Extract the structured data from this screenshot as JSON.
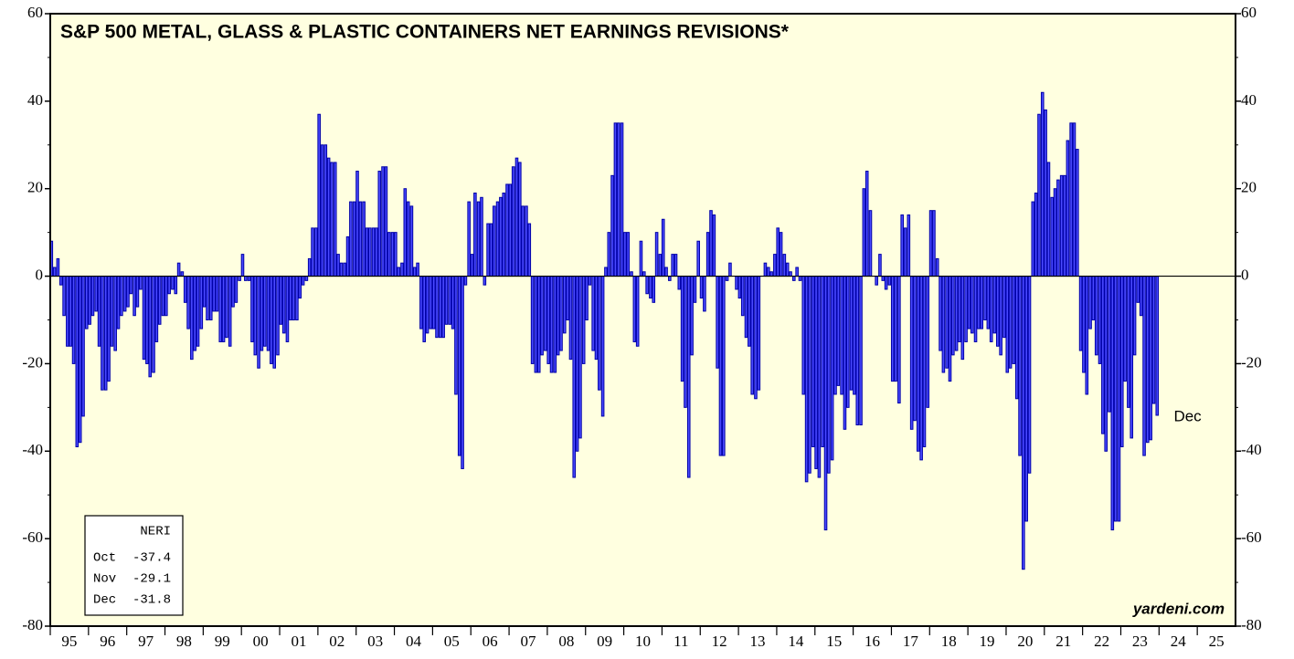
{
  "chart_data": {
    "type": "bar",
    "title": "S&P 500 METAL, GLASS & PLASTIC CONTAINERS NET EARNINGS REVISIONS*",
    "credit": "yardeni.com",
    "end_label": "Dec",
    "legend_box": {
      "title": "NERI",
      "months": [
        "Oct",
        "Nov",
        "Dec"
      ]
    },
    "xlim": [
      1995,
      2026
    ],
    "xticks": [
      {
        "value": 1995.5,
        "label": "95"
      },
      {
        "value": 1996.5,
        "label": "96"
      },
      {
        "value": 1997.5,
        "label": "97"
      },
      {
        "value": 1998.5,
        "label": "98"
      },
      {
        "value": 1999.5,
        "label": "99"
      },
      {
        "value": 2000.5,
        "label": "00"
      },
      {
        "value": 2001.5,
        "label": "01"
      },
      {
        "value": 2002.5,
        "label": "02"
      },
      {
        "value": 2003.5,
        "label": "03"
      },
      {
        "value": 2004.5,
        "label": "04"
      },
      {
        "value": 2005.5,
        "label": "05"
      },
      {
        "value": 2006.5,
        "label": "06"
      },
      {
        "value": 2007.5,
        "label": "07"
      },
      {
        "value": 2008.5,
        "label": "08"
      },
      {
        "value": 2009.5,
        "label": "09"
      },
      {
        "value": 2010.5,
        "label": "10"
      },
      {
        "value": 2011.5,
        "label": "11"
      },
      {
        "value": 2012.5,
        "label": "12"
      },
      {
        "value": 2013.5,
        "label": "13"
      },
      {
        "value": 2014.5,
        "label": "14"
      },
      {
        "value": 2015.5,
        "label": "15"
      },
      {
        "value": 2016.5,
        "label": "16"
      },
      {
        "value": 2017.5,
        "label": "17"
      },
      {
        "value": 2018.5,
        "label": "18"
      },
      {
        "value": 2019.5,
        "label": "19"
      },
      {
        "value": 2020.5,
        "label": "20"
      },
      {
        "value": 2021.5,
        "label": "21"
      },
      {
        "value": 2022.5,
        "label": "22"
      },
      {
        "value": 2023.5,
        "label": "23"
      },
      {
        "value": 2024.5,
        "label": "24"
      },
      {
        "value": 2025.5,
        "label": "25"
      }
    ],
    "ylim": [
      -80,
      60
    ],
    "yticks": [
      -80,
      -60,
      -40,
      -20,
      0,
      20,
      40,
      60
    ],
    "series": [
      {
        "name": "NERI",
        "color": "#4a4aff",
        "edge": "#0000a8",
        "x": [
          1995,
          1995.08,
          1995.17,
          1995.25,
          1995.33,
          1995.42,
          1995.5,
          1995.58,
          1995.67,
          1995.75,
          1995.83,
          1995.92,
          1996,
          1996.08,
          1996.17,
          1996.25,
          1996.33,
          1996.42,
          1996.5,
          1996.58,
          1996.67,
          1996.75,
          1996.83,
          1996.92,
          1997,
          1997.08,
          1997.17,
          1997.25,
          1997.33,
          1997.42,
          1997.5,
          1997.58,
          1997.67,
          1997.75,
          1997.83,
          1997.92,
          1998,
          1998.08,
          1998.17,
          1998.25,
          1998.33,
          1998.42,
          1998.5,
          1998.58,
          1998.67,
          1998.75,
          1998.83,
          1998.92,
          1999,
          1999.08,
          1999.17,
          1999.25,
          1999.33,
          1999.42,
          1999.5,
          1999.58,
          1999.67,
          1999.75,
          1999.83,
          1999.92,
          2000,
          2000.08,
          2000.17,
          2000.25,
          2000.33,
          2000.42,
          2000.5,
          2000.58,
          2000.67,
          2000.75,
          2000.83,
          2000.92,
          2001,
          2001.08,
          2001.17,
          2001.25,
          2001.33,
          2001.42,
          2001.5,
          2001.58,
          2001.67,
          2001.75,
          2001.83,
          2001.92,
          2002,
          2002.08,
          2002.17,
          2002.25,
          2002.33,
          2002.42,
          2002.5,
          2002.58,
          2002.67,
          2002.75,
          2002.83,
          2002.92,
          2003,
          2003.08,
          2003.17,
          2003.25,
          2003.33,
          2003.42,
          2003.5,
          2003.58,
          2003.67,
          2003.75,
          2003.83,
          2003.92,
          2004,
          2004.08,
          2004.17,
          2004.25,
          2004.33,
          2004.42,
          2004.5,
          2004.58,
          2004.67,
          2004.75,
          2004.83,
          2004.92,
          2005,
          2005.08,
          2005.17,
          2005.25,
          2005.33,
          2005.42,
          2005.5,
          2005.58,
          2005.67,
          2005.75,
          2005.83,
          2005.92,
          2006,
          2006.08,
          2006.17,
          2006.25,
          2006.33,
          2006.42,
          2006.5,
          2006.58,
          2006.67,
          2006.75,
          2006.83,
          2006.92,
          2007,
          2007.08,
          2007.17,
          2007.25,
          2007.33,
          2007.42,
          2007.5,
          2007.58,
          2007.67,
          2007.75,
          2007.83,
          2007.92,
          2008,
          2008.08,
          2008.17,
          2008.25,
          2008.33,
          2008.42,
          2008.5,
          2008.58,
          2008.67,
          2008.75,
          2008.83,
          2008.92,
          2009,
          2009.08,
          2009.17,
          2009.25,
          2009.33,
          2009.42,
          2009.5,
          2009.58,
          2009.67,
          2009.75,
          2009.83,
          2009.92,
          2010,
          2010.08,
          2010.17,
          2010.25,
          2010.33,
          2010.42,
          2010.5,
          2010.58,
          2010.67,
          2010.75,
          2010.83,
          2010.92,
          2011,
          2011.08,
          2011.17,
          2011.25,
          2011.33,
          2011.42,
          2011.5,
          2011.58,
          2011.67,
          2011.75,
          2011.83,
          2011.92,
          2012,
          2012.08,
          2012.17,
          2012.25,
          2012.33,
          2012.42,
          2012.5,
          2012.58,
          2012.67,
          2012.75,
          2012.83,
          2012.92,
          2013,
          2013.08,
          2013.17,
          2013.25,
          2013.33,
          2013.42,
          2013.5,
          2013.58,
          2013.67,
          2013.75,
          2013.83,
          2013.92,
          2014,
          2014.08,
          2014.17,
          2014.25,
          2014.33,
          2014.42,
          2014.5,
          2014.58,
          2014.67,
          2014.75,
          2014.83,
          2014.92,
          2015,
          2015.08,
          2015.17,
          2015.25,
          2015.33,
          2015.42,
          2015.5,
          2015.58,
          2015.67,
          2015.75,
          2015.83,
          2015.92,
          2016,
          2016.08,
          2016.17,
          2016.25,
          2016.33,
          2016.42,
          2016.5,
          2016.58,
          2016.67,
          2016.75,
          2016.83,
          2016.92,
          2017,
          2017.08,
          2017.17,
          2017.25,
          2017.33,
          2017.42,
          2017.5,
          2017.58,
          2017.67,
          2017.75,
          2017.83,
          2017.92,
          2018,
          2018.08,
          2018.17,
          2018.25,
          2018.33,
          2018.42,
          2018.5,
          2018.58,
          2018.67,
          2018.75,
          2018.83,
          2018.92,
          2019,
          2019.08,
          2019.17,
          2019.25,
          2019.33,
          2019.42,
          2019.5,
          2019.58,
          2019.67,
          2019.75,
          2019.83,
          2019.92,
          2020,
          2020.08,
          2020.17,
          2020.25,
          2020.33,
          2020.42,
          2020.5,
          2020.58,
          2020.67,
          2020.75,
          2020.83,
          2020.92,
          2021,
          2021.08,
          2021.17,
          2021.25,
          2021.33,
          2021.42,
          2021.5,
          2021.58,
          2021.67,
          2021.75,
          2021.83,
          2021.92,
          2022,
          2022.08,
          2022.17,
          2022.25,
          2022.33,
          2022.42,
          2022.5,
          2022.58,
          2022.67,
          2022.75,
          2022.83,
          2022.92,
          2023,
          2023.08,
          2023.17,
          2023.25,
          2023.33,
          2023.42,
          2023.5,
          2023.58,
          2023.67,
          2023.75,
          2023.83,
          2023.92
        ],
        "values": [
          8,
          2,
          4,
          -2,
          -9,
          -16,
          -16,
          -20,
          -39,
          -38,
          -32,
          -12,
          -11,
          -9,
          -8,
          -16,
          -26,
          -26,
          -24,
          -16,
          -17,
          -12,
          -9,
          -8,
          -7,
          -4,
          -9,
          -7,
          -3,
          -19,
          -20,
          -23,
          -22,
          -15,
          -11,
          -9,
          -9,
          -4,
          -3,
          -4,
          3,
          1,
          -6,
          -12,
          -19,
          -17,
          -16,
          -12,
          -7,
          -10,
          -10,
          -8,
          -8,
          -15,
          -15,
          -14,
          -16,
          -7,
          -6,
          -1,
          5,
          -1,
          -1,
          -15,
          -18,
          -21,
          -17,
          -16,
          -17,
          -20,
          -21,
          -18,
          -11,
          -13,
          -15,
          -10,
          -10,
          -10,
          -5,
          -2,
          -1,
          4,
          11,
          11,
          37,
          30,
          30,
          27,
          26,
          26,
          5,
          3,
          3,
          9,
          17,
          17,
          24,
          17,
          17,
          11,
          11,
          11,
          11,
          24,
          25,
          25,
          10,
          10,
          10,
          2,
          3,
          20,
          17,
          16,
          2,
          3,
          -12,
          -15,
          -13,
          -12,
          -12,
          -14,
          -14,
          -14,
          -11,
          -11,
          -12,
          -27,
          -41,
          -44,
          -2,
          17,
          5,
          19,
          17,
          18,
          -2,
          12,
          12,
          16,
          17,
          18,
          19,
          21,
          21,
          25,
          27,
          26,
          16,
          16,
          12,
          -20,
          -22,
          -22,
          -18,
          -17,
          -20,
          -22,
          -22,
          -18,
          -17,
          -13,
          -10,
          -19,
          -46,
          -40,
          -37,
          -20,
          -10,
          -2,
          -17,
          -19,
          -26,
          -32,
          2,
          10,
          23,
          35,
          35,
          35,
          10,
          10,
          1,
          -15,
          -16,
          8,
          1,
          -4,
          -5,
          -6,
          10,
          5,
          13,
          2,
          -1,
          5,
          5,
          -3,
          -24,
          -30,
          -46,
          -18,
          -6,
          8,
          -5,
          -8,
          10,
          15,
          14,
          -21,
          -41,
          -41,
          -1,
          3,
          0,
          -3,
          -5,
          -9,
          -14,
          -16,
          -27,
          -28,
          -26,
          0,
          3,
          2,
          1,
          5,
          11,
          10,
          5,
          3,
          1,
          -1,
          2,
          -1,
          -27,
          -47,
          -45,
          -39,
          -44,
          -46,
          -39,
          -58,
          -45,
          -42,
          -27,
          -25,
          -27,
          -35,
          -30,
          -26,
          -27,
          -34,
          -34,
          20,
          24,
          15,
          0,
          -2,
          5,
          -1,
          -3,
          -2,
          -24,
          -24,
          -29,
          14,
          11,
          14,
          -35,
          -33,
          -40,
          -42,
          -39,
          -30,
          15,
          15,
          4,
          -17,
          -22,
          -21,
          -24,
          -18,
          -17,
          -15,
          -19,
          -15,
          -12,
          -13,
          -15,
          -12,
          -12,
          -10,
          -12,
          -15,
          -13,
          -16,
          -18,
          -14,
          -22,
          -21,
          -20,
          -28,
          -41,
          -67,
          -56,
          -45,
          17,
          19,
          37,
          42,
          38,
          26,
          18,
          20,
          22,
          23,
          23,
          31,
          35,
          35,
          29,
          -17,
          -22,
          -27,
          -12,
          -10,
          -18,
          -20,
          -36,
          -40,
          -31,
          -58,
          -56,
          -56,
          -39,
          -24,
          -30,
          -37,
          -18,
          -6,
          -9,
          -41,
          -38,
          -37.4,
          -29.1,
          -31.8
        ]
      }
    ]
  }
}
